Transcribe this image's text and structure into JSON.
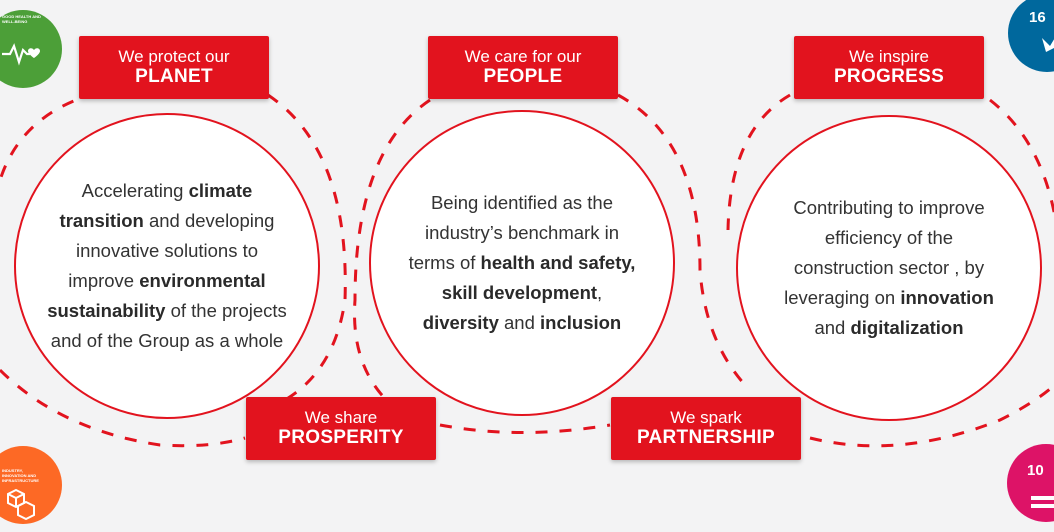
{
  "pillars": [
    {
      "id": "planet",
      "label_top": "We protect our",
      "label_main": "PLANET",
      "text_segments": [
        {
          "t": "Accelerating ",
          "b": false
        },
        {
          "t": "climate transition",
          "b": true
        },
        {
          "t": " and developing innovative solutions to improve ",
          "b": false
        },
        {
          "t": "environmental sustainability",
          "b": true
        },
        {
          "t": " of the projects and of the Group as a whole",
          "b": false
        }
      ]
    },
    {
      "id": "people",
      "label_top": "We care for our",
      "label_main": "PEOPLE",
      "text_segments": [
        {
          "t": "Being identified as the industry’s benchmark in terms of ",
          "b": false
        },
        {
          "t": "health and safety, skill development",
          "b": true
        },
        {
          "t": ", ",
          "b": false
        },
        {
          "t": "diversity",
          "b": true
        },
        {
          "t": " and ",
          "b": false
        },
        {
          "t": "inclusion",
          "b": true
        }
      ]
    },
    {
      "id": "progress",
      "label_top": "We inspire",
      "label_main": "PROGRESS",
      "text_segments": [
        {
          "t": "Contributing to improve efficiency of the construction sector , by leveraging on ",
          "b": false
        },
        {
          "t": "innovation",
          "b": true
        },
        {
          "t": " and ",
          "b": false
        },
        {
          "t": "digitalization",
          "b": true
        }
      ]
    }
  ],
  "connectors": [
    {
      "id": "prosperity",
      "label_top": "We share",
      "label_main": "PROSPERITY"
    },
    {
      "id": "partnership",
      "label_top": "We spark",
      "label_main": "PARTNERSHIP"
    }
  ],
  "sdg_badges": [
    {
      "id": "sdg-3",
      "number": "",
      "caption": "GOOD HEALTH AND WELL-BEING",
      "color": "#4c9f38",
      "icon": "heartbeat-icon"
    },
    {
      "id": "sdg-9",
      "number": "",
      "caption": "INDUSTRY, INNOVATION AND INFRASTRUCTURE",
      "color": "#fd6925",
      "icon": "cubes-icon"
    },
    {
      "id": "sdg-16",
      "number": "16",
      "caption": "",
      "color": "#00689d",
      "icon": "dove-icon"
    },
    {
      "id": "sdg-10",
      "number": "10",
      "caption": "",
      "color": "#dd1367",
      "icon": "equality-icon"
    }
  ],
  "colors": {
    "accent": "#e2131e",
    "background": "#f3f3f4",
    "text": "#333333"
  }
}
